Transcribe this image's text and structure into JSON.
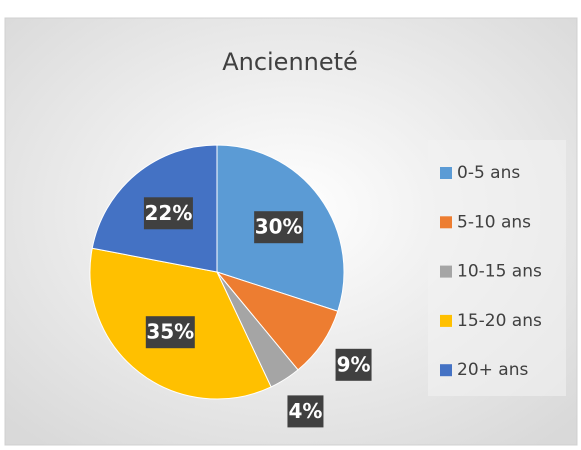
{
  "chart_data": {
    "type": "pie",
    "title": "Ancienneté",
    "categories": [
      "0-5 ans",
      "5-10 ans",
      "10-15 ans",
      "15-20 ans",
      "20+ ans"
    ],
    "values": [
      30,
      9,
      4,
      35,
      22
    ],
    "value_labels": [
      "30%",
      "9%",
      "4%",
      "35%",
      "22%"
    ],
    "colors": [
      "#5b9bd5",
      "#ed7d31",
      "#a5a5a5",
      "#ffc000",
      "#4472c4"
    ],
    "legend": "right"
  }
}
